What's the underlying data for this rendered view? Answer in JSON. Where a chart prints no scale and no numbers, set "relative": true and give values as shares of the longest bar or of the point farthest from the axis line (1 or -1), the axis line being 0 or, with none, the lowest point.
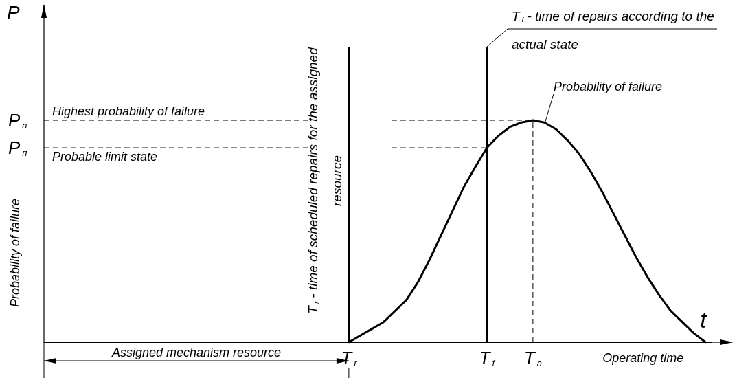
{
  "chart_data": {
    "type": "line",
    "relative": true,
    "categories": [
      null,
      null,
      null,
      null,
      null,
      null,
      null,
      null,
      null,
      null,
      null,
      null,
      null,
      null,
      null,
      null,
      null,
      null,
      null,
      null,
      null,
      null,
      null,
      null,
      null,
      null,
      "T$_{r}$",
      null,
      null,
      null,
      null,
      null,
      null,
      null,
      null,
      null,
      null,
      null,
      "T$_{f}$",
      null,
      null,
      null,
      "T$_{a}$",
      null,
      null,
      null,
      null,
      null,
      null,
      null,
      null,
      null,
      null,
      null,
      null,
      null,
      null,
      null
    ],
    "series": [
      {
        "name": "Probability of failure",
        "color": "#000000",
        "values": [
          null,
          null,
          null,
          null,
          null,
          null,
          null,
          null,
          null,
          null,
          null,
          null,
          null,
          null,
          null,
          null,
          null,
          null,
          null,
          null,
          null,
          null,
          null,
          null,
          null,
          null,
          0,
          0.03,
          0.06,
          0.09,
          0.14,
          0.19,
          0.27,
          0.37,
          0.48,
          0.59,
          0.7,
          0.79,
          0.876,
          0.93,
          0.97,
          0.99,
          1,
          0.99,
          0.96,
          0.91,
          0.85,
          0.77,
          0.68,
          0.58,
          0.48,
          0.38,
          0.29,
          0.21,
          0.14,
          0.09,
          0.04,
          0
        ]
      }
    ],
    "xlabel": "Operating time",
    "ylabel": "Probability of failure",
    "ref_lines": [
      {
        "axis": "y",
        "value": 1,
        "label": "P$_{a}$",
        "line_style": "dashed"
      },
      {
        "axis": "y",
        "value": 0.876,
        "label": "P$_{п}$",
        "line_style": "dashed"
      },
      {
        "axis": "x",
        "value": "T$_{r}$",
        "label": "T$_{r}$ - time of scheduled repairs for the assigned resource",
        "line_style": "solid"
      },
      {
        "axis": "x",
        "value": "T$_{f}$",
        "label": "T$_{f}$ - time of repairs according to the actual state",
        "line_style": "solid"
      },
      {
        "axis": "x",
        "value": "T$_{a}$",
        "line_style": "dashed"
      }
    ],
    "annotations": [
      "P",
      "t",
      "Assigned mechanism resource",
      {
        "text": "Highest probability of failure",
        "y": 1
      },
      {
        "text": "Probable limit state",
        "y": 0.876
      }
    ],
    "legend": false,
    "grid": false,
    "marker": "none"
  }
}
